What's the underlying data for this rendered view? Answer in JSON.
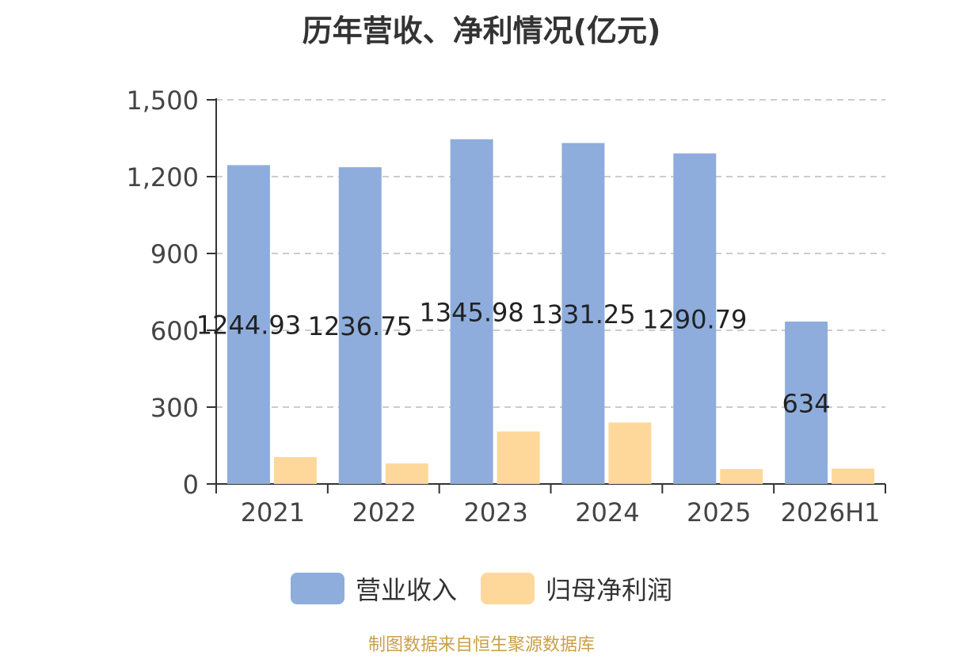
{
  "title": "历年营收、净利情况(亿元)",
  "footer": "制图数据来自恒生聚源数据库",
  "colors": {
    "revenue": "#8eaddc",
    "profit": "#fdd89a",
    "footer": "#c9a04a",
    "grid": "#cccccc",
    "axis": "#333333"
  },
  "chart_data": {
    "type": "bar",
    "title": "历年营收、净利情况(亿元)",
    "categories": [
      "2021",
      "2022",
      "2023",
      "2024",
      "2025",
      "2026H1"
    ],
    "series": [
      {
        "name": "营业收入",
        "values": [
          1244.93,
          1236.75,
          1345.98,
          1331.25,
          1290.79,
          634
        ],
        "labels": [
          "1244.93",
          "1236.75",
          "1345.98",
          "1331.25",
          "1290.79",
          "634"
        ]
      },
      {
        "name": "归母净利润",
        "values": [
          105,
          80,
          205,
          240,
          58,
          60
        ]
      }
    ],
    "ylim": [
      0,
      1500
    ],
    "yticks": [
      0,
      300,
      600,
      900,
      1200,
      1500
    ],
    "ytick_labels": [
      "0",
      "300",
      "600",
      "900",
      "1,200",
      "1,500"
    ],
    "grid": true,
    "legend_position": "bottom"
  }
}
